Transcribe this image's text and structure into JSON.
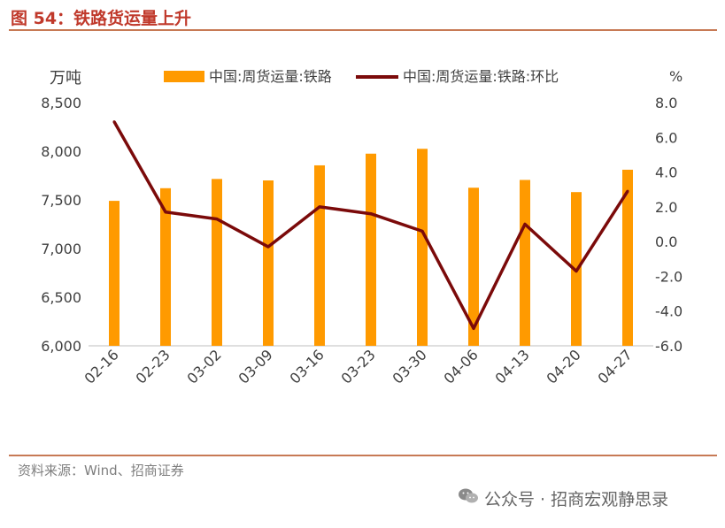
{
  "figure_title": "图 54：铁路货运量上升",
  "source_note": "资料来源：Wind、招商证券",
  "watermark": "公众号 · 招商宏观静思录",
  "colors": {
    "title": "#c0392b",
    "rule": "#c77a55",
    "bar": "#ff9a00",
    "line": "#7b0a0a",
    "text": "#404040"
  },
  "chart_data": {
    "type": "bar",
    "categories": [
      "02-16",
      "02-23",
      "03-02",
      "03-09",
      "03-16",
      "03-23",
      "03-30",
      "04-06",
      "04-13",
      "04-20",
      "04-27"
    ],
    "series": [
      {
        "name": "中国:周货运量:铁路",
        "type": "bar",
        "axis": "left",
        "values": [
          7490,
          7620,
          7715,
          7700,
          7855,
          7975,
          8025,
          7625,
          7705,
          7580,
          7810
        ]
      },
      {
        "name": "中国:周货运量:铁路:环比",
        "type": "line",
        "axis": "right",
        "values": [
          6.9,
          1.7,
          1.3,
          -0.3,
          2.0,
          1.6,
          0.6,
          -5.0,
          1.0,
          -1.7,
          2.9
        ]
      }
    ],
    "y_left": {
      "label": "万吨",
      "min": 6000,
      "max": 8500,
      "ticks": [
        "6,000",
        "6,500",
        "7,000",
        "7,500",
        "8,000",
        "8,500"
      ]
    },
    "y_right": {
      "label": "%",
      "min": -6,
      "max": 8,
      "ticks": [
        "-6.0",
        "-4.0",
        "-2.0",
        "0.0",
        "2.0",
        "4.0",
        "6.0",
        "8.0"
      ]
    },
    "grid": false,
    "legend_position": "top"
  }
}
